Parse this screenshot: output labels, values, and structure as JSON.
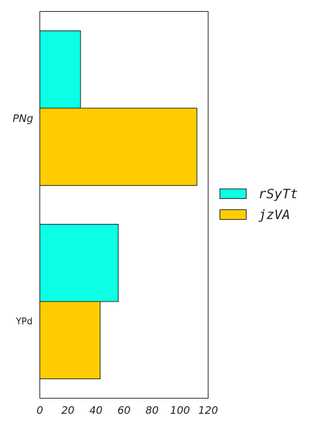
{
  "chart_data": {
    "type": "bar",
    "orientation": "horizontal",
    "categories": [
      "PNg",
      "YPd"
    ],
    "series": [
      {
        "name": "rSyTt",
        "values": [
          29,
          56
        ],
        "color": "#0dffe6"
      },
      {
        "name": "jzVA",
        "values": [
          112,
          43
        ],
        "color": "#ffcc00"
      }
    ],
    "xlim": [
      0,
      120
    ],
    "xticks": [
      "0",
      "20",
      "40",
      "60",
      "80",
      "100",
      "120"
    ],
    "legend": "right",
    "grid": false
  }
}
